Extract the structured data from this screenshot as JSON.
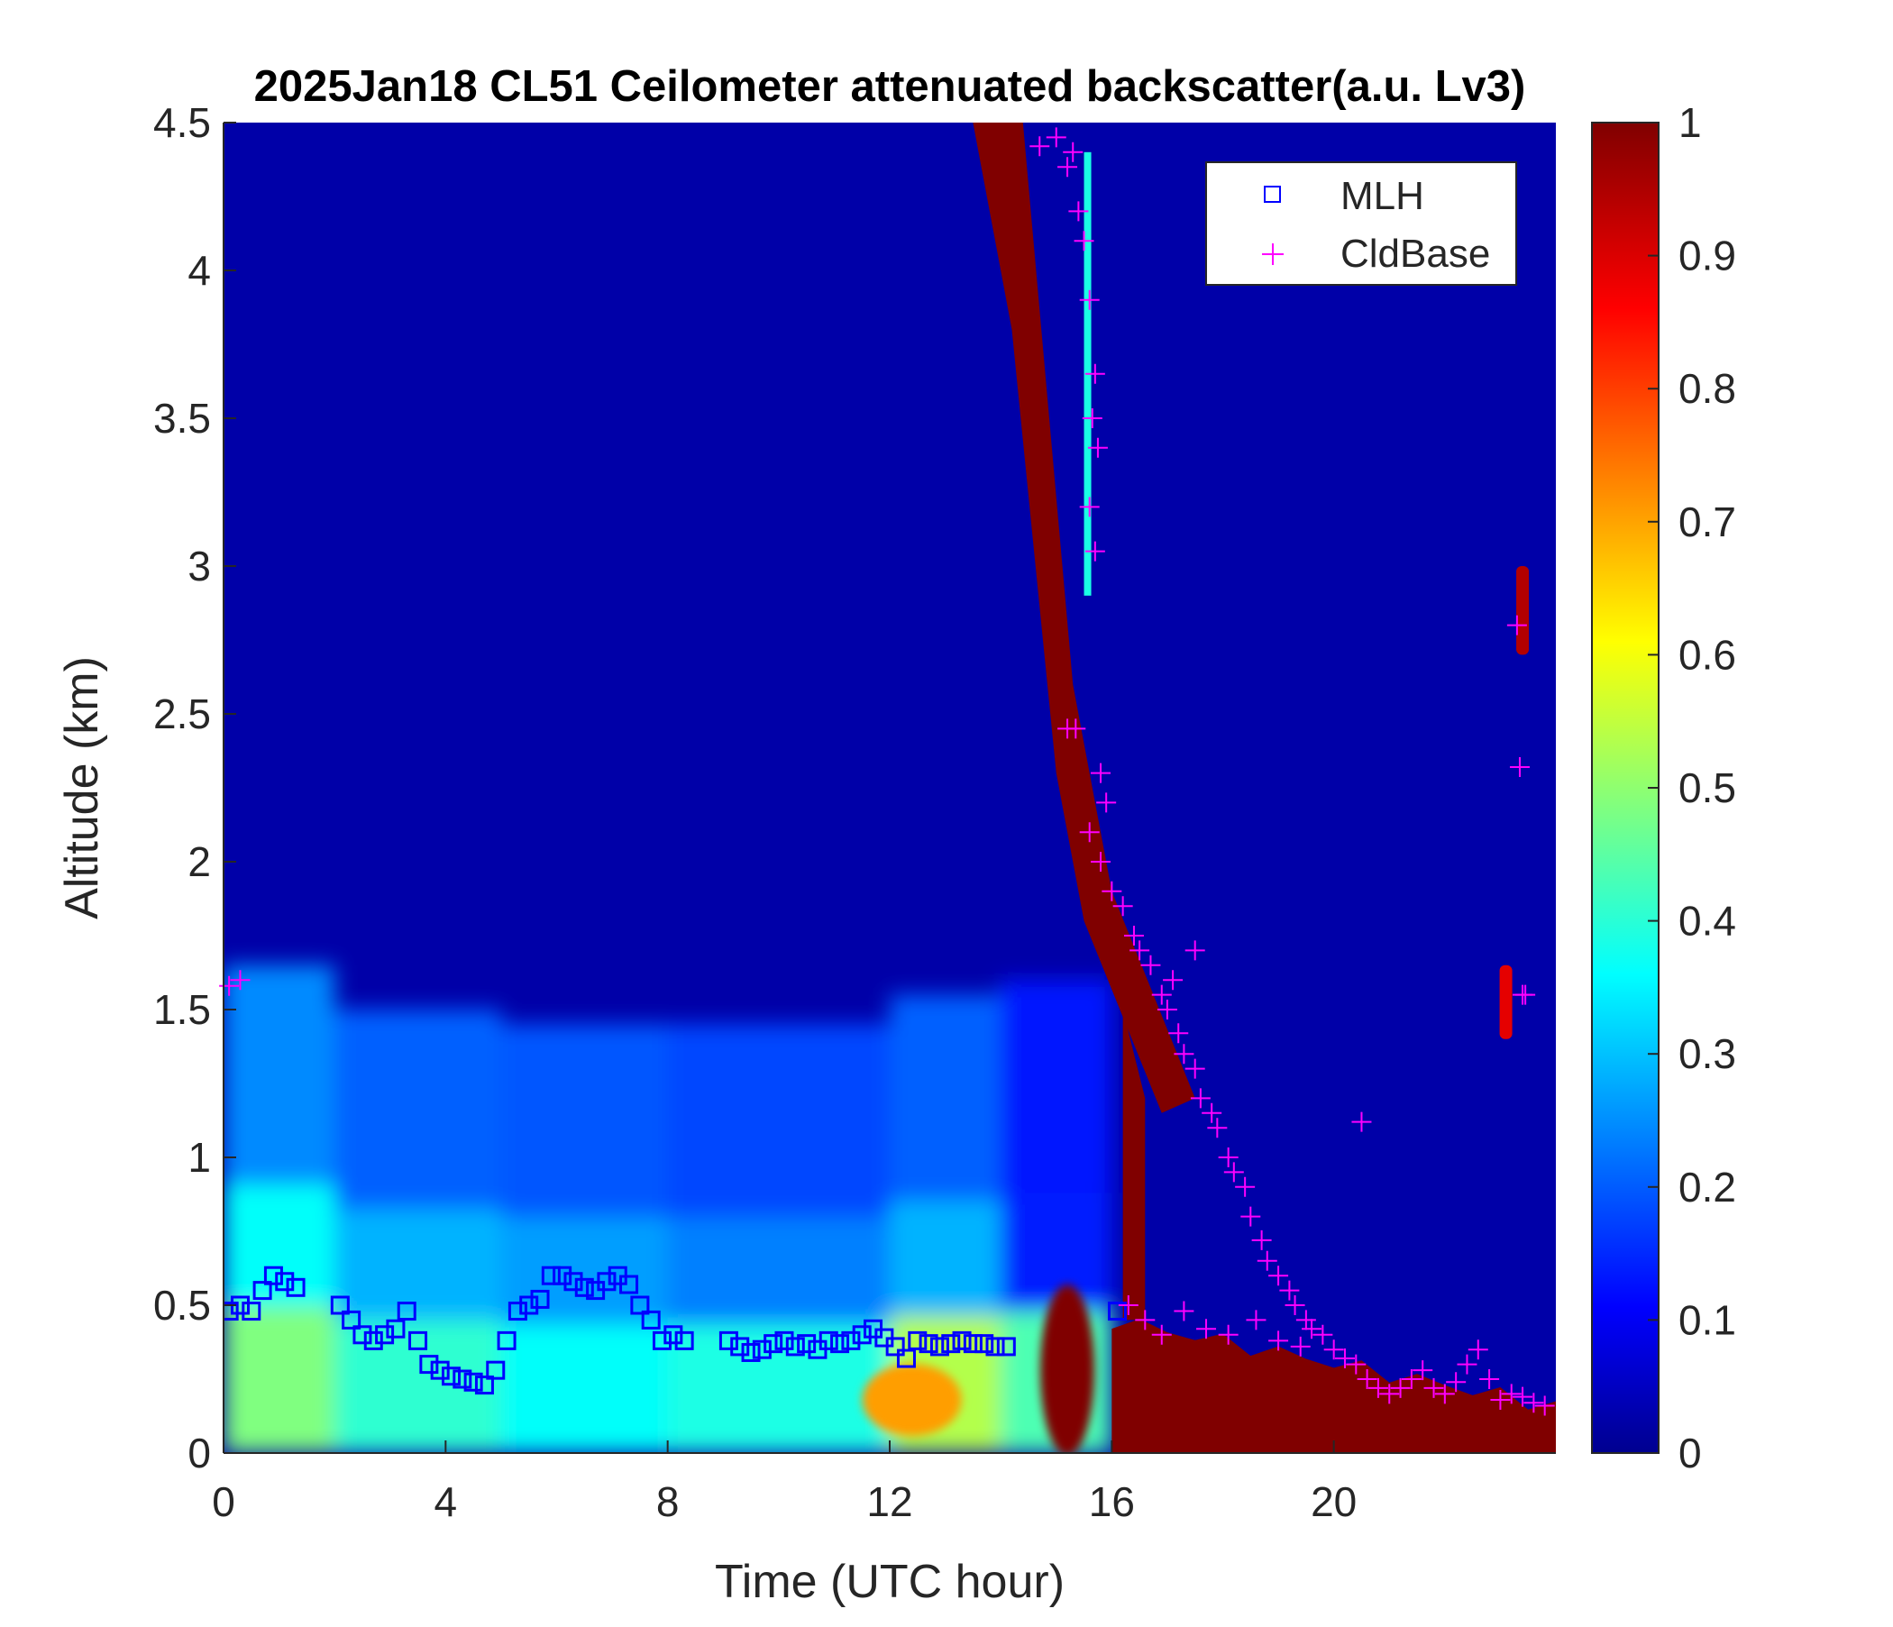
{
  "chart_data": {
    "type": "heatmap",
    "title": "2025Jan18 CL51 Ceilometer attenuated backscatter(a.u. Lv3)",
    "xlabel": "Time (UTC hour)",
    "ylabel": "Altitude (km)",
    "xlim": [
      0,
      24
    ],
    "ylim": [
      0,
      4.5
    ],
    "x_ticks": [
      0,
      4,
      8,
      12,
      16,
      20
    ],
    "x_tick_labels": [
      "0",
      "4",
      "8",
      "12",
      "16",
      "20"
    ],
    "y_ticks": [
      0,
      0.5,
      1,
      1.5,
      2,
      2.5,
      3,
      3.5,
      4,
      4.5
    ],
    "y_tick_labels": [
      "0",
      "0.5",
      "1",
      "1.5",
      "2",
      "2.5",
      "3",
      "3.5",
      "4",
      "4.5"
    ],
    "colorbar": {
      "colormap": "jet",
      "range": [
        0,
        1
      ],
      "ticks": [
        0,
        0.1,
        0.2,
        0.3,
        0.4,
        0.5,
        0.6,
        0.7,
        0.8,
        0.9,
        1
      ],
      "tick_labels": [
        "0",
        "0.1",
        "0.2",
        "0.3",
        "0.4",
        "0.5",
        "0.6",
        "0.7",
        "0.8",
        "0.9",
        "1"
      ]
    },
    "legend": {
      "location": "top-right",
      "entries": [
        {
          "label": "MLH",
          "marker": "square",
          "color": "#0000ff"
        },
        {
          "label": "CldBase",
          "marker": "plus",
          "color": "#ff00ff"
        }
      ]
    },
    "backscatter_field": {
      "background_value": 0.04,
      "boundary_layer": [
        {
          "t": [
            0,
            2
          ],
          "top_km": 1.65,
          "low_value": 0.5,
          "mid_value": 0.38
        },
        {
          "t": [
            2,
            5
          ],
          "top_km": 1.5,
          "low_value": 0.42,
          "mid_value": 0.3
        },
        {
          "t": [
            5,
            8
          ],
          "top_km": 1.45,
          "low_value": 0.38,
          "mid_value": 0.28
        },
        {
          "t": [
            8,
            12
          ],
          "top_km": 1.45,
          "low_value": 0.4,
          "mid_value": 0.25
        },
        {
          "t": [
            12,
            14
          ],
          "top_km": 1.55,
          "low_value": 0.55,
          "mid_value": 0.3
        },
        {
          "t": [
            14,
            16
          ],
          "top_km": 1.6,
          "low_value": 0.45,
          "mid_value": 0.15
        }
      ],
      "features": [
        {
          "name": "surface-maximum-12h",
          "t": 12.4,
          "alt_km": 0.18,
          "value": 0.72
        },
        {
          "name": "surface-maximum-15h",
          "t": 15.2,
          "alt_km": 0.28,
          "value": 1.0
        },
        {
          "name": "surface-fog-after-16h",
          "t": [
            16,
            24
          ],
          "top_km": 0.45,
          "value": 1.0
        },
        {
          "name": "descending-cloud-layer",
          "t": [
            13.5,
            17.5
          ],
          "alt_km": [
            4.5,
            1.2
          ],
          "value": 1.0
        },
        {
          "name": "upper-cloud-23h",
          "t": 23.4,
          "alt_km": [
            2.7,
            3.0
          ],
          "value": 0.95
        },
        {
          "name": "mid-cloud-23h",
          "t": 23.1,
          "alt_km": [
            1.4,
            1.65
          ],
          "value": 0.9
        }
      ]
    },
    "series": [
      {
        "name": "MLH",
        "marker": "square",
        "color": "#0000ff",
        "x": [
          0.1,
          0.3,
          0.5,
          0.7,
          0.9,
          1.1,
          1.3,
          2.1,
          2.3,
          2.5,
          2.7,
          2.9,
          3.1,
          3.3,
          3.5,
          3.7,
          3.9,
          4.1,
          4.3,
          4.5,
          4.7,
          4.9,
          5.1,
          5.3,
          5.5,
          5.7,
          5.9,
          6.1,
          6.3,
          6.5,
          6.7,
          6.9,
          7.1,
          7.3,
          7.5,
          7.7,
          7.9,
          8.1,
          8.3,
          9.1,
          9.3,
          9.5,
          9.7,
          9.9,
          10.1,
          10.3,
          10.5,
          10.7,
          10.9,
          11.1,
          11.3,
          11.5,
          11.7,
          11.9,
          12.1,
          12.3,
          12.5,
          12.7,
          12.9,
          13.1,
          13.3,
          13.5,
          13.7,
          13.9,
          14.1,
          16.1
        ],
        "y": [
          0.48,
          0.5,
          0.48,
          0.55,
          0.6,
          0.58,
          0.56,
          0.5,
          0.45,
          0.4,
          0.38,
          0.4,
          0.42,
          0.48,
          0.38,
          0.3,
          0.28,
          0.26,
          0.25,
          0.24,
          0.23,
          0.28,
          0.38,
          0.48,
          0.5,
          0.52,
          0.6,
          0.6,
          0.58,
          0.56,
          0.55,
          0.58,
          0.6,
          0.57,
          0.5,
          0.45,
          0.38,
          0.4,
          0.38,
          0.38,
          0.36,
          0.34,
          0.35,
          0.37,
          0.38,
          0.36,
          0.37,
          0.35,
          0.38,
          0.37,
          0.38,
          0.4,
          0.42,
          0.39,
          0.36,
          0.32,
          0.38,
          0.37,
          0.36,
          0.37,
          0.38,
          0.37,
          0.37,
          0.36,
          0.36,
          0.48
        ]
      },
      {
        "name": "CldBase",
        "marker": "plus",
        "color": "#ff00ff",
        "x": [
          0.1,
          0.3,
          14.7,
          15.0,
          15.2,
          15.3,
          15.4,
          15.5,
          15.6,
          15.7,
          15.65,
          15.75,
          15.6,
          15.7,
          15.35,
          15.2,
          15.8,
          15.9,
          15.6,
          15.8,
          16.0,
          16.2,
          16.4,
          16.5,
          16.7,
          16.9,
          17.0,
          17.2,
          17.3,
          17.5,
          17.6,
          17.8,
          17.9,
          18.1,
          18.2,
          18.4,
          18.5,
          18.7,
          18.8,
          19.0,
          19.2,
          19.3,
          19.5,
          19.6,
          19.8,
          20.0,
          20.2,
          20.4,
          20.6,
          20.8,
          21.0,
          21.2,
          21.4,
          21.6,
          21.8,
          22.0,
          22.2,
          22.4,
          22.6,
          22.8,
          23.0,
          23.2,
          23.4,
          23.6,
          23.8,
          23.3,
          23.35,
          23.4,
          23.45,
          16.3,
          16.6,
          16.9,
          17.3,
          17.7,
          18.1,
          18.6,
          19.0,
          19.4,
          20.5,
          17.1,
          17.5
        ],
        "y": [
          1.58,
          1.6,
          4.42,
          4.45,
          4.35,
          4.4,
          4.2,
          4.1,
          3.9,
          3.65,
          3.5,
          3.4,
          3.2,
          3.05,
          2.45,
          2.45,
          2.3,
          2.2,
          2.1,
          2.0,
          1.9,
          1.85,
          1.75,
          1.7,
          1.65,
          1.55,
          1.5,
          1.42,
          1.35,
          1.3,
          1.2,
          1.15,
          1.1,
          1.0,
          0.95,
          0.9,
          0.8,
          0.72,
          0.65,
          0.6,
          0.55,
          0.5,
          0.45,
          0.42,
          0.4,
          0.35,
          0.32,
          0.3,
          0.25,
          0.22,
          0.2,
          0.22,
          0.25,
          0.28,
          0.22,
          0.2,
          0.24,
          0.3,
          0.35,
          0.25,
          0.18,
          0.2,
          0.19,
          0.17,
          0.16,
          2.8,
          2.32,
          1.55,
          1.55,
          0.5,
          0.45,
          0.4,
          0.48,
          0.42,
          0.4,
          0.45,
          0.38,
          0.36,
          1.12,
          1.6,
          1.7
        ]
      }
    ]
  }
}
